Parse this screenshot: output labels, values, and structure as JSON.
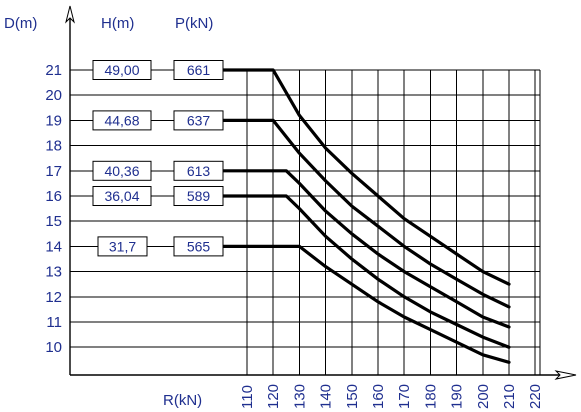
{
  "chart_data": {
    "type": "line",
    "title": "",
    "headers": {
      "d": "D(m)",
      "h": "H(m)",
      "p": "P(kN)"
    },
    "xlabel": "R(kN)",
    "x_ticks": [
      "110",
      "120",
      "130",
      "140",
      "150",
      "160",
      "170",
      "180",
      "190",
      "200",
      "210",
      "220"
    ],
    "y_ticks": [
      "21",
      "20",
      "19",
      "18",
      "17",
      "16",
      "15",
      "14",
      "13",
      "12",
      "11",
      "10"
    ],
    "xlim": [
      100,
      225
    ],
    "ylim": [
      9,
      22
    ],
    "grid": true,
    "series": [
      {
        "d": "21",
        "h": "49,00",
        "p": "661",
        "x": [
          100,
          120,
          130,
          140,
          150,
          160,
          170,
          180,
          190,
          200,
          210
        ],
        "y": [
          21,
          21,
          19.2,
          17.9,
          16.9,
          16.0,
          15.1,
          14.4,
          13.7,
          13.0,
          12.5
        ]
      },
      {
        "d": "19",
        "h": "44,68",
        "p": "637",
        "x": [
          100,
          120,
          130,
          140,
          150,
          160,
          170,
          180,
          190,
          200,
          210
        ],
        "y": [
          19,
          19,
          17.7,
          16.6,
          15.6,
          14.8,
          14.0,
          13.3,
          12.7,
          12.1,
          11.6
        ]
      },
      {
        "d": "17",
        "h": "40,36",
        "p": "613",
        "x": [
          100,
          125,
          130,
          140,
          150,
          160,
          170,
          180,
          190,
          200,
          210
        ],
        "y": [
          17,
          17,
          16.5,
          15.4,
          14.5,
          13.7,
          13.0,
          12.4,
          11.8,
          11.2,
          10.8
        ]
      },
      {
        "d": "16",
        "h": "36,04",
        "p": "589",
        "x": [
          100,
          125,
          130,
          140,
          150,
          160,
          170,
          180,
          190,
          200,
          210
        ],
        "y": [
          16,
          16,
          15.5,
          14.4,
          13.5,
          12.7,
          12.0,
          11.4,
          10.9,
          10.4,
          10.0
        ]
      },
      {
        "d": "14",
        "h": "31,7",
        "p": "565",
        "x": [
          100,
          130,
          140,
          150,
          160,
          170,
          180,
          190,
          200,
          210
        ],
        "y": [
          14,
          14,
          13.2,
          12.5,
          11.8,
          11.2,
          10.7,
          10.2,
          9.7,
          9.4
        ]
      }
    ]
  }
}
